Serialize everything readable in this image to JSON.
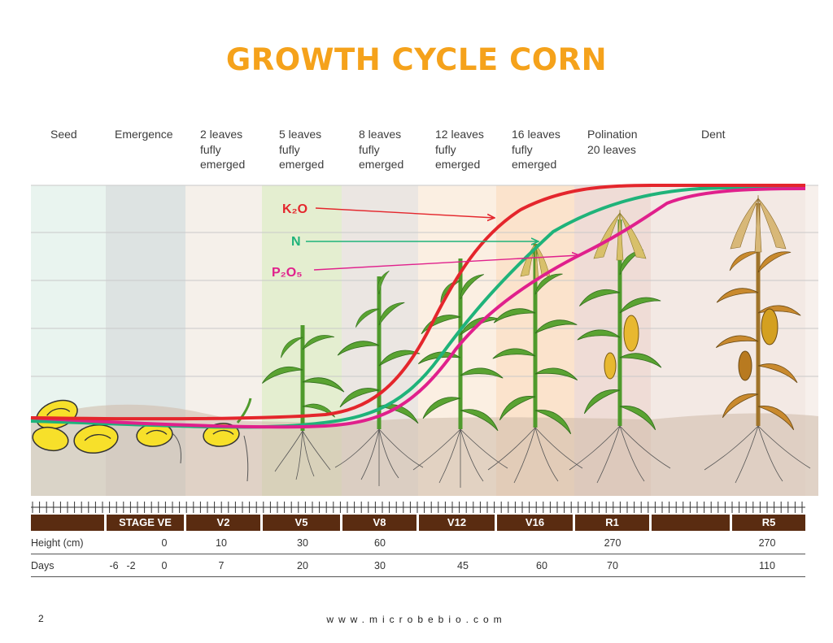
{
  "title": "GROWTH CYCLE CORN",
  "stages": [
    {
      "label": "Seed",
      "cx": 0
    },
    {
      "label": "Emergence"
    },
    {
      "label": "2 leaves\nfufly\nemerged"
    },
    {
      "label": "5 leaves\nfufly\nemerged"
    },
    {
      "label": "8 leaves\nfufly\nemerged"
    },
    {
      "label": "12 leaves\nfufly\nemerged"
    },
    {
      "label": "16 leaves\nfufly\nemerged"
    },
    {
      "label": "Polination\n20 leaves"
    },
    {
      "label": "Dent"
    }
  ],
  "nutrients": {
    "k2o": {
      "label": "K₂O",
      "color": "#e4262c"
    },
    "n": {
      "label": "N",
      "color": "#1fb37a"
    },
    "p2o5": {
      "label": "P₂O₅",
      "color": "#e0208c"
    }
  },
  "stage_bar": [
    "",
    "STAGE VE",
    "V2",
    "V5",
    "V8",
    "V12",
    "V16",
    "R1",
    "",
    "R5"
  ],
  "height_row": {
    "label": "Height (cm)",
    "values": [
      "0",
      "10",
      "30",
      "60",
      "270",
      "270"
    ]
  },
  "days_row": {
    "label": "Days",
    "values": [
      "-6",
      "-2",
      "0",
      "7",
      "20",
      "30",
      "45",
      "60",
      "70",
      "110"
    ]
  },
  "footer": {
    "page": "2",
    "url": "www.microbebio.com"
  },
  "colors": {
    "title": "#f5a21b",
    "bar": "#5a2c11",
    "stem": "#4f9a2c",
    "leaf": "#5aa332",
    "dry": "#c98a2e"
  }
}
